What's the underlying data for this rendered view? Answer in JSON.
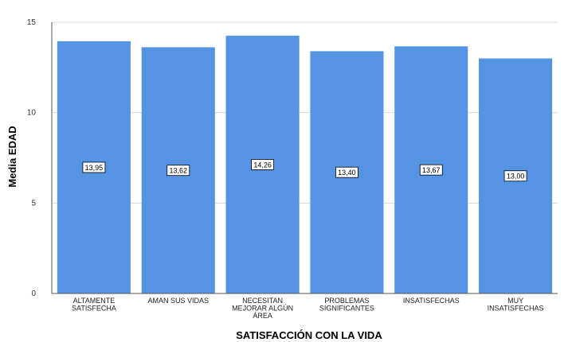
{
  "chart_data": {
    "type": "bar",
    "title": "",
    "xlabel": "SATISFACCIÓN CON LA VIDA",
    "ylabel": "Media EDAD",
    "ylim": [
      0,
      15
    ],
    "yticks": [
      "0",
      "5",
      "10",
      "15"
    ],
    "grid": true,
    "categories": [
      [
        "ALTAMENTE",
        "SATISFECHA"
      ],
      [
        "AMAN SUS VIDAS"
      ],
      [
        "NECESITAN",
        "MEJORAR ALGÚN",
        "ÁREA"
      ],
      [
        "PROBLEMAS",
        "SIGNIFICANTES"
      ],
      [
        "INSATISFECHAS"
      ],
      [
        "MUY",
        "INSATISFECHAS"
      ]
    ],
    "values": [
      13.95,
      13.62,
      14.26,
      13.4,
      13.67,
      13.0
    ],
    "value_labels": [
      "13,95",
      "13,62",
      "14,26",
      "13,40",
      "13,67",
      "13,00"
    ],
    "bar_color": "#5594e3",
    "grid_color": "#d9d9d9"
  }
}
